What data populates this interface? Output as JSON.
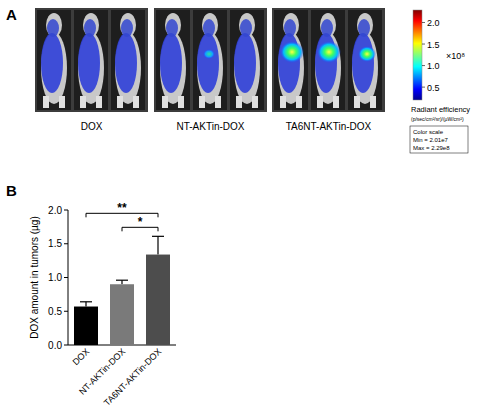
{
  "panel_labels": [
    "A",
    "B"
  ],
  "image_panel": {
    "groups": [
      "DOX",
      "NT-AKTin-DOX",
      "TA6NT-AKTin-DOX"
    ],
    "colorbar": {
      "title": "Radiant efficiency",
      "unit": "(p/sec/cm²/sr)/(µW/cm²)",
      "multiplier": "×10⁸",
      "range": [
        0.201,
        2.29
      ],
      "ticks": [
        0.5,
        {
          "value": 1,
          "label": "1.0"
        },
        1.5,
        {
          "value": 2,
          "label": "2.0"
        }
      ],
      "scale_note": [
        "Color scale",
        "Min = 2.01e7",
        "Max = 2.29e8"
      ]
    }
  },
  "chart_data": {
    "type": "bar",
    "categories": [
      "DOX",
      "NT-AKTin-DOX",
      "TA6NT-AKTin-DOX"
    ],
    "values": [
      0.57,
      0.9,
      1.34
    ],
    "errors": [
      0.07,
      0.06,
      0.27
    ],
    "colors": [
      "#000000",
      "#7a7a7a",
      "#4d4d4d"
    ],
    "ylabel": "DOX amount in tumors (µg)",
    "ylim": [
      0,
      2
    ],
    "yticks": [
      {
        "value": 0,
        "label": "0.0"
      },
      0.5,
      {
        "value": 1,
        "label": "1.0"
      },
      1.5,
      {
        "value": 2,
        "label": "2.0"
      }
    ],
    "annotations": [
      {
        "text": "*",
        "from": 1,
        "to": 2
      },
      {
        "text": "**",
        "from": 0,
        "to": 2
      }
    ]
  }
}
